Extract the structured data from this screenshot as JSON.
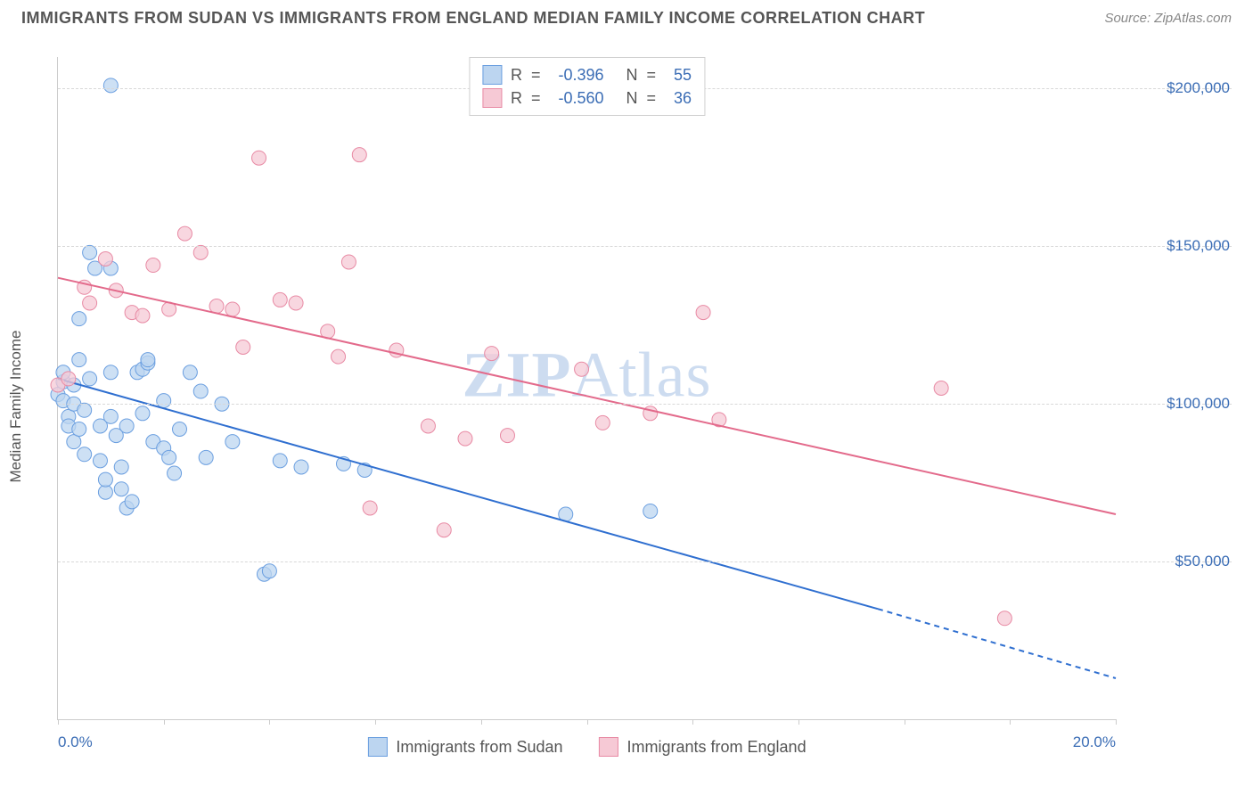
{
  "header": {
    "title": "IMMIGRANTS FROM SUDAN VS IMMIGRANTS FROM ENGLAND MEDIAN FAMILY INCOME CORRELATION CHART",
    "source": "Source: ZipAtlas.com"
  },
  "ylabel": "Median Family Income",
  "watermark_a": "ZIP",
  "watermark_b": "Atlas",
  "chart": {
    "type": "scatter",
    "xlim": [
      0,
      20
    ],
    "ylim": [
      0,
      210000
    ],
    "x_ticks": [
      0,
      2,
      4,
      6,
      8,
      10,
      12,
      14,
      16,
      18,
      20
    ],
    "x_tick_labels_shown": {
      "0": "0.0%",
      "20": "20.0%"
    },
    "y_gridlines": [
      50000,
      100000,
      150000,
      200000
    ],
    "y_tick_labels": {
      "50000": "$50,000",
      "100000": "$100,000",
      "150000": "$150,000",
      "200000": "$200,000"
    },
    "background_color": "#ffffff",
    "grid_color": "#d8d8d8",
    "axis_color": "#cccccc",
    "series": [
      {
        "key": "sudan",
        "label": "Immigrants from Sudan",
        "marker_fill": "#bcd5f0",
        "marker_stroke": "#6b9fe0",
        "marker_radius": 8,
        "line_color": "#2f6fd0",
        "line_width": 2,
        "trend": {
          "x1": 0,
          "y1": 108000,
          "x2": 15.5,
          "y2": 35000,
          "dash_from_x": 15.5,
          "dash_to_x": 20,
          "dash_to_y": 13000
        },
        "R": "-0.396",
        "N": "55",
        "points": [
          [
            0.0,
            103000
          ],
          [
            0.1,
            107000
          ],
          [
            0.1,
            101000
          ],
          [
            0.1,
            110000
          ],
          [
            0.2,
            96000
          ],
          [
            0.2,
            93000
          ],
          [
            0.3,
            88000
          ],
          [
            0.3,
            100000
          ],
          [
            0.3,
            106000
          ],
          [
            0.4,
            127000
          ],
          [
            0.4,
            114000
          ],
          [
            0.4,
            92000
          ],
          [
            0.5,
            98000
          ],
          [
            0.5,
            84000
          ],
          [
            0.6,
            148000
          ],
          [
            0.6,
            108000
          ],
          [
            0.7,
            143000
          ],
          [
            0.8,
            82000
          ],
          [
            0.8,
            93000
          ],
          [
            0.9,
            72000
          ],
          [
            0.9,
            76000
          ],
          [
            1.0,
            201000
          ],
          [
            1.0,
            143000
          ],
          [
            1.0,
            110000
          ],
          [
            1.0,
            96000
          ],
          [
            1.1,
            90000
          ],
          [
            1.2,
            73000
          ],
          [
            1.2,
            80000
          ],
          [
            1.3,
            67000
          ],
          [
            1.3,
            93000
          ],
          [
            1.4,
            69000
          ],
          [
            1.5,
            110000
          ],
          [
            1.6,
            111000
          ],
          [
            1.6,
            97000
          ],
          [
            1.7,
            113000
          ],
          [
            1.7,
            114000
          ],
          [
            1.8,
            88000
          ],
          [
            2.0,
            101000
          ],
          [
            2.0,
            86000
          ],
          [
            2.1,
            83000
          ],
          [
            2.2,
            78000
          ],
          [
            2.3,
            92000
          ],
          [
            2.5,
            110000
          ],
          [
            2.7,
            104000
          ],
          [
            2.8,
            83000
          ],
          [
            3.1,
            100000
          ],
          [
            3.3,
            88000
          ],
          [
            3.9,
            46000
          ],
          [
            4.0,
            47000
          ],
          [
            4.2,
            82000
          ],
          [
            4.6,
            80000
          ],
          [
            5.4,
            81000
          ],
          [
            5.8,
            79000
          ],
          [
            9.6,
            65000
          ],
          [
            11.2,
            66000
          ]
        ]
      },
      {
        "key": "england",
        "label": "Immigrants from England",
        "marker_fill": "#f6c9d5",
        "marker_stroke": "#e88aa4",
        "marker_radius": 8,
        "line_color": "#e36a8b",
        "line_width": 2,
        "trend": {
          "x1": 0,
          "y1": 140000,
          "x2": 20,
          "y2": 65000
        },
        "R": "-0.560",
        "N": "36",
        "points": [
          [
            0.0,
            106000
          ],
          [
            0.2,
            108000
          ],
          [
            0.5,
            137000
          ],
          [
            0.6,
            132000
          ],
          [
            0.9,
            146000
          ],
          [
            1.1,
            136000
          ],
          [
            1.4,
            129000
          ],
          [
            1.6,
            128000
          ],
          [
            1.8,
            144000
          ],
          [
            2.1,
            130000
          ],
          [
            2.4,
            154000
          ],
          [
            2.7,
            148000
          ],
          [
            3.0,
            131000
          ],
          [
            3.3,
            130000
          ],
          [
            3.5,
            118000
          ],
          [
            3.8,
            178000
          ],
          [
            4.2,
            133000
          ],
          [
            4.5,
            132000
          ],
          [
            5.1,
            123000
          ],
          [
            5.3,
            115000
          ],
          [
            5.5,
            145000
          ],
          [
            5.7,
            179000
          ],
          [
            5.9,
            67000
          ],
          [
            6.4,
            117000
          ],
          [
            7.0,
            93000
          ],
          [
            7.3,
            60000
          ],
          [
            7.7,
            89000
          ],
          [
            8.2,
            116000
          ],
          [
            8.5,
            90000
          ],
          [
            9.9,
            111000
          ],
          [
            10.3,
            94000
          ],
          [
            11.2,
            97000
          ],
          [
            12.2,
            129000
          ],
          [
            12.5,
            95000
          ],
          [
            16.7,
            105000
          ],
          [
            17.9,
            32000
          ]
        ]
      }
    ]
  },
  "legend_top": {
    "r_label": "R  =  ",
    "n_label": "   N  =  "
  }
}
